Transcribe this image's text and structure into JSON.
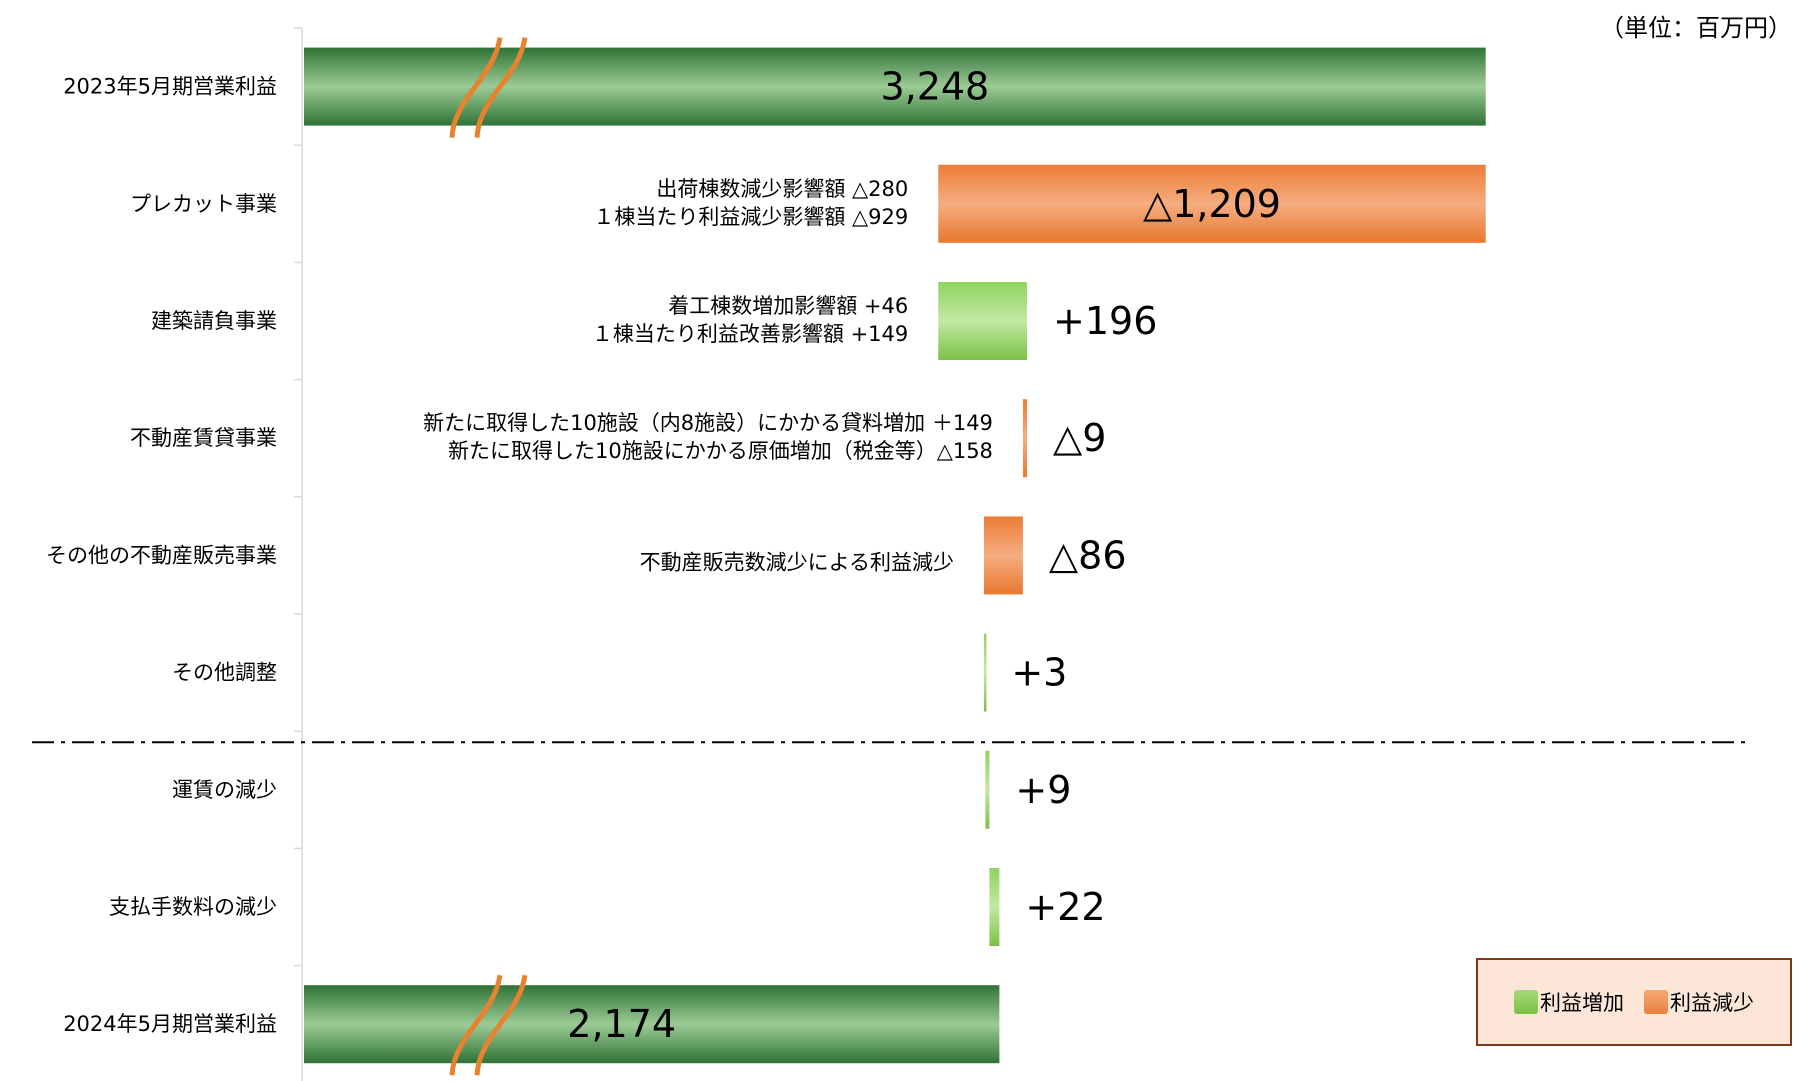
{
  "unit_label": "（単位：百万円）",
  "colors": {
    "total": "#3f8a45",
    "increase": "#8ccf5c",
    "decrease": "#ee8a45",
    "break_mark": "#e8822e"
  },
  "legend": {
    "increase_label": "利益増加",
    "decrease_label": "利益減少"
  },
  "chart_data": {
    "type": "bar",
    "orientation": "horizontal",
    "waterfall": true,
    "axis_break": true,
    "unit": "百万円",
    "items": [
      {
        "category": "2023年5月期営業利益",
        "kind": "total",
        "value": 3248,
        "label": "3,248",
        "annotations": []
      },
      {
        "category": "プレカット事業",
        "kind": "decrease",
        "value": -1209,
        "label": "△1,209",
        "annotations": [
          "出荷棟数減少影響額 △280",
          "１棟当たり利益減少影響額 △929"
        ]
      },
      {
        "category": "建築請負事業",
        "kind": "increase",
        "value": 196,
        "label": "+196",
        "annotations": [
          "着工棟数増加影響額 +46",
          "１棟当たり利益改善影響額 +149"
        ]
      },
      {
        "category": "不動産賃貸事業",
        "kind": "decrease",
        "value": -9,
        "label": "△9",
        "annotations": [
          "新たに取得した10施設（内8施設）にかかる貸料増加 ＋149",
          "新たに取得した10施設にかかる原価増加（税金等）△158"
        ]
      },
      {
        "category": "その他の不動産販売事業",
        "kind": "decrease",
        "value": -86,
        "label": "△86",
        "annotations": [
          "不動産販売数減少による利益減少"
        ]
      },
      {
        "category": "その他調整",
        "kind": "increase",
        "value": 3,
        "label": "+3",
        "annotations": []
      },
      {
        "category": "運賃の減少",
        "kind": "increase",
        "value": 9,
        "label": "+9",
        "annotations": []
      },
      {
        "category": "支払手数料の減少",
        "kind": "increase",
        "value": 22,
        "label": "+22",
        "annotations": []
      },
      {
        "category": "2024年5月期営業利益",
        "kind": "total",
        "value": 2174,
        "label": "2,174",
        "annotations": []
      }
    ]
  }
}
